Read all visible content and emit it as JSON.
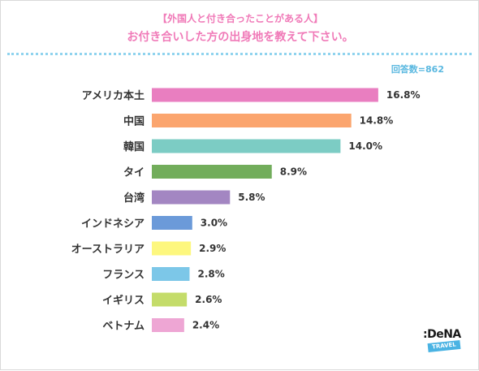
{
  "header": {
    "subtitle": "【外国人と付き合ったことがある人】",
    "title": "お付き合いした方の出身地を教えて下さい。",
    "respondents": "回答数=862"
  },
  "logo": {
    "text": ":DeNA",
    "sub": "TRAVEL"
  },
  "chart_data": {
    "type": "bar",
    "orientation": "horizontal",
    "title": "お付き合いした方の出身地を教えて下さい。",
    "xlabel": "",
    "ylabel": "",
    "unit": "%",
    "grid": false,
    "categories": [
      "アメリカ本土",
      "中国",
      "韓国",
      "タイ",
      "台湾",
      "インドネシア",
      "オーストラリア",
      "フランス",
      "イギリス",
      "ベトナム"
    ],
    "values": [
      16.8,
      14.8,
      14.0,
      8.9,
      5.8,
      3.0,
      2.9,
      2.8,
      2.6,
      2.4
    ],
    "labels": [
      "16.8%",
      "14.8%",
      "14.0%",
      "8.9%",
      "5.8%",
      "3.0%",
      "2.9%",
      "2.8%",
      "2.6%",
      "2.4%"
    ],
    "colors": [
      "#e97ec0",
      "#fba56e",
      "#7cccc4",
      "#72ad5b",
      "#a386c2",
      "#6b9ad9",
      "#fdf77e",
      "#7cc7e8",
      "#c4dc6a",
      "#eea6d4"
    ]
  }
}
